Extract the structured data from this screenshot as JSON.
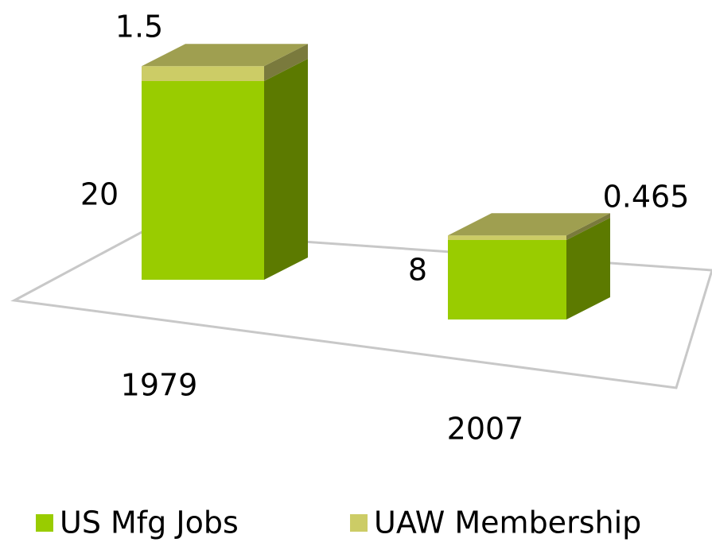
{
  "chart_data": {
    "type": "bar3d_stacked",
    "categories": [
      "1979",
      "2007"
    ],
    "series": [
      {
        "name": "US Mfg Jobs",
        "color": "#99cc00",
        "values": [
          20,
          8
        ]
      },
      {
        "name": "UAW Membership",
        "color": "#cccc66",
        "values": [
          1.5,
          0.465
        ]
      }
    ],
    "stacked": true,
    "legend": "bottom"
  }
}
